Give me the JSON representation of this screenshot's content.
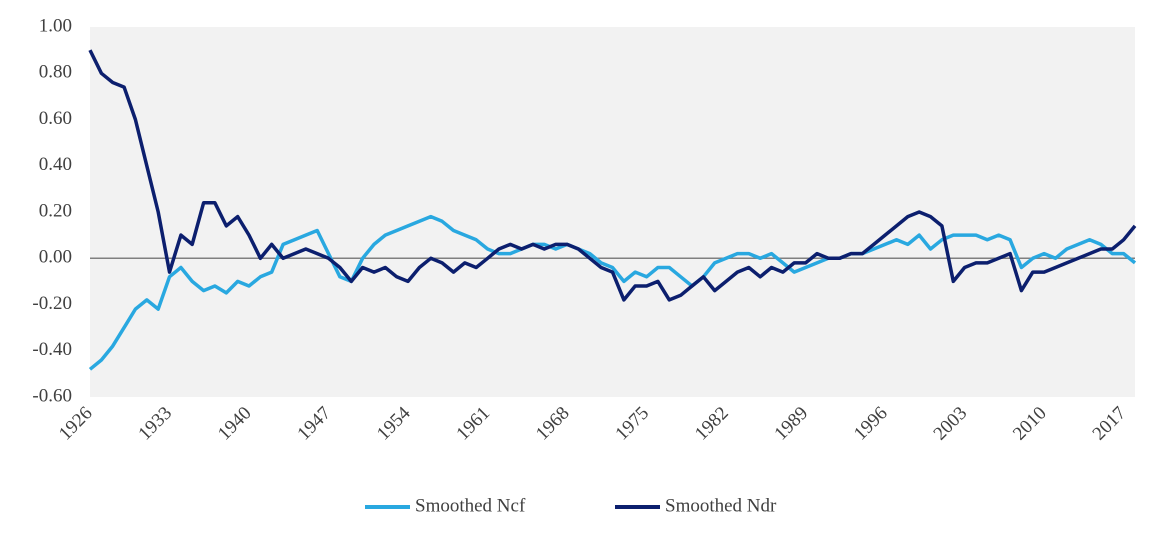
{
  "chart_data": {
    "type": "line",
    "x": [
      1926,
      1927,
      1928,
      1929,
      1930,
      1931,
      1932,
      1933,
      1934,
      1935,
      1936,
      1937,
      1938,
      1939,
      1940,
      1941,
      1942,
      1943,
      1944,
      1945,
      1946,
      1947,
      1948,
      1949,
      1950,
      1951,
      1952,
      1953,
      1954,
      1955,
      1956,
      1957,
      1958,
      1959,
      1960,
      1961,
      1962,
      1963,
      1964,
      1965,
      1966,
      1967,
      1968,
      1969,
      1970,
      1971,
      1972,
      1973,
      1974,
      1975,
      1976,
      1977,
      1978,
      1979,
      1980,
      1981,
      1982,
      1983,
      1984,
      1985,
      1986,
      1987,
      1988,
      1989,
      1990,
      1991,
      1992,
      1993,
      1994,
      1995,
      1996,
      1997,
      1998,
      1999,
      2000,
      2001,
      2002,
      2003,
      2004,
      2005,
      2006,
      2007,
      2008,
      2009,
      2010,
      2011,
      2012,
      2013,
      2014,
      2015,
      2016,
      2017,
      2018
    ],
    "series": [
      {
        "name": "Smoothed Ncf",
        "color": "#29a8e0",
        "values": [
          -0.48,
          -0.44,
          -0.38,
          -0.3,
          -0.22,
          -0.18,
          -0.22,
          -0.08,
          -0.04,
          -0.1,
          -0.14,
          -0.12,
          -0.15,
          -0.1,
          -0.12,
          -0.08,
          -0.06,
          0.06,
          0.08,
          0.1,
          0.12,
          0.02,
          -0.08,
          -0.1,
          0.0,
          0.06,
          0.1,
          0.12,
          0.14,
          0.16,
          0.18,
          0.16,
          0.12,
          0.1,
          0.08,
          0.04,
          0.02,
          0.02,
          0.04,
          0.06,
          0.06,
          0.04,
          0.06,
          0.04,
          0.02,
          -0.02,
          -0.04,
          -0.1,
          -0.06,
          -0.08,
          -0.04,
          -0.04,
          -0.08,
          -0.12,
          -0.08,
          -0.02,
          0.0,
          0.02,
          0.02,
          0.0,
          0.02,
          -0.02,
          -0.06,
          -0.04,
          -0.02,
          0.0,
          0.0,
          0.02,
          0.02,
          0.04,
          0.06,
          0.08,
          0.06,
          0.1,
          0.04,
          0.08,
          0.1,
          0.1,
          0.1,
          0.08,
          0.1,
          0.08,
          -0.04,
          0.0,
          0.02,
          0.0,
          0.04,
          0.06,
          0.08,
          0.06,
          0.02,
          0.02,
          -0.02
        ]
      },
      {
        "name": "Smoothed Ndr",
        "color": "#0c1f6e",
        "values": [
          0.9,
          0.8,
          0.76,
          0.74,
          0.6,
          0.4,
          0.2,
          -0.06,
          0.1,
          0.06,
          0.24,
          0.24,
          0.14,
          0.18,
          0.1,
          0.0,
          0.06,
          0.0,
          0.02,
          0.04,
          0.02,
          0.0,
          -0.04,
          -0.1,
          -0.04,
          -0.06,
          -0.04,
          -0.08,
          -0.1,
          -0.04,
          0.0,
          -0.02,
          -0.06,
          -0.02,
          -0.04,
          0.0,
          0.04,
          0.06,
          0.04,
          0.06,
          0.04,
          0.06,
          0.06,
          0.04,
          0.0,
          -0.04,
          -0.06,
          -0.18,
          -0.12,
          -0.12,
          -0.1,
          -0.18,
          -0.16,
          -0.12,
          -0.08,
          -0.14,
          -0.1,
          -0.06,
          -0.04,
          -0.08,
          -0.04,
          -0.06,
          -0.02,
          -0.02,
          0.02,
          0.0,
          0.0,
          0.02,
          0.02,
          0.06,
          0.1,
          0.14,
          0.18,
          0.2,
          0.18,
          0.14,
          -0.1,
          -0.04,
          -0.02,
          -0.02,
          0.0,
          0.02,
          -0.14,
          -0.06,
          -0.06,
          -0.04,
          -0.02,
          0.0,
          0.02,
          0.04,
          0.04,
          0.08,
          0.14
        ]
      }
    ],
    "xlim": [
      1926,
      2018
    ],
    "xticks": [
      1926,
      1933,
      1940,
      1947,
      1954,
      1961,
      1968,
      1975,
      1982,
      1989,
      1996,
      2003,
      2010,
      2017
    ],
    "ylim": [
      -0.6,
      1.0
    ],
    "yticks": [
      {
        "value": 1.0,
        "label": "1.00"
      },
      {
        "value": 0.8,
        "label": "0.80"
      },
      {
        "value": 0.6,
        "label": "0.60"
      },
      {
        "value": 0.4,
        "label": "0.40"
      },
      {
        "value": 0.2,
        "label": "0.20"
      },
      {
        "value": 0.0,
        "label": "0.00"
      },
      {
        "value": -0.2,
        "label": "-0.20"
      },
      {
        "value": -0.4,
        "label": "-0.40"
      },
      {
        "value": -0.6,
        "label": "-0.60"
      }
    ],
    "legend": "bottom"
  }
}
